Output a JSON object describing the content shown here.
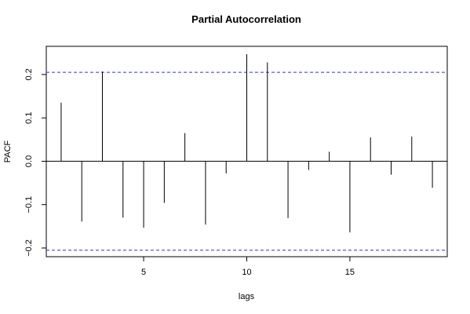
{
  "chart_data": {
    "type": "bar",
    "title": "Partial Autocorrelation",
    "xlabel": "lags",
    "ylabel": "PACF",
    "xlim": [
      0.28,
      19.72
    ],
    "ylim": [
      -0.22,
      0.265
    ],
    "x_ticks": [
      5,
      10,
      15
    ],
    "x_tick_labels": [
      "5",
      "10",
      "15"
    ],
    "y_ticks": [
      -0.2,
      -0.1,
      0.0,
      0.1,
      0.2
    ],
    "y_tick_labels": [
      "−0.2",
      "−0.1",
      "0.0",
      "0.1",
      "0.2"
    ],
    "grid": false,
    "lags": [
      1,
      2,
      3,
      4,
      5,
      6,
      7,
      8,
      9,
      10,
      11,
      12,
      13,
      14,
      15,
      16,
      17,
      18,
      19
    ],
    "values": [
      0.135,
      -0.139,
      0.207,
      -0.13,
      -0.153,
      -0.096,
      0.065,
      -0.146,
      -0.028,
      0.247,
      0.228,
      -0.131,
      -0.02,
      0.022,
      -0.164,
      0.055,
      -0.031,
      0.057,
      -0.061
    ],
    "confidence_band": [
      -0.205,
      0.205
    ],
    "colors": {
      "bars": "#000000",
      "confidence": "#3333cc",
      "zero_line": "#000000",
      "box": "#000000"
    }
  }
}
